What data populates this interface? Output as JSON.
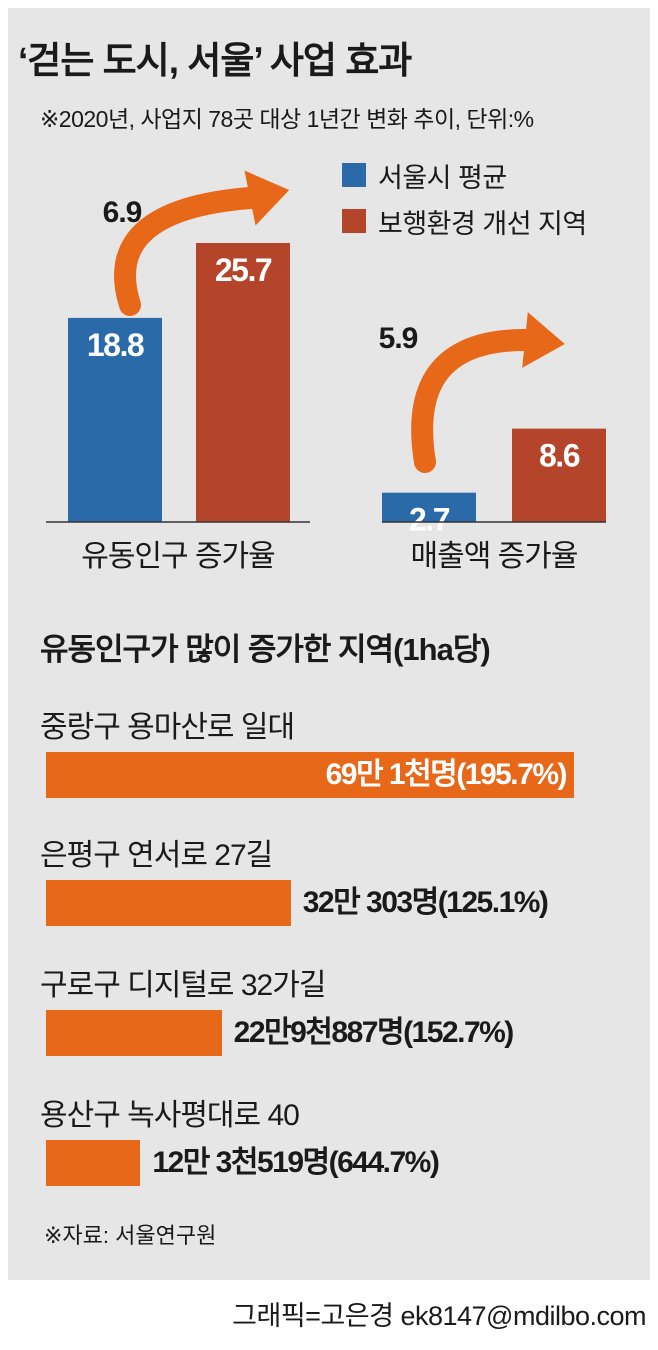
{
  "title": "‘걷는 도시, 서울’ 사업 효과",
  "subtitle": "※2020년, 사업지 78곳 대상 1년간 변화 추이, 단위:%",
  "legend": {
    "items": [
      {
        "label": "서울시 평균",
        "color": "#2a6aa8"
      },
      {
        "label": "보행환경 개선 지역",
        "color": "#b4442a"
      }
    ]
  },
  "chart_data": [
    {
      "type": "bar",
      "categories": [
        "유동인구 증가율",
        "매출액 증가율"
      ],
      "series": [
        {
          "name": "서울시 평균",
          "values": [
            18.8,
            2.7
          ],
          "color": "#2a6aa8"
        },
        {
          "name": "보행환경 개선 지역",
          "values": [
            25.7,
            8.6
          ],
          "color": "#b4442a"
        }
      ],
      "annotations": [
        {
          "category": "유동인구 증가율",
          "text": "6.9"
        },
        {
          "category": "매출액 증가율",
          "text": "5.9"
        }
      ],
      "unit": "%"
    },
    {
      "type": "bar",
      "orientation": "horizontal",
      "title": "유동인구가 많이 증가한 지역(1ha당)",
      "categories": [
        "중랑구 용마산로 일대",
        "은평구 연서로 27길",
        "구로구 디지털로 32가길",
        "용산구 녹사평대로 40"
      ],
      "values": [
        691000,
        320303,
        229887,
        123519
      ],
      "labels": [
        "69만 1천명(195.7%)",
        "32만 303명(125.1%)",
        "22만9천887명(152.7%)",
        "12만 3천519명(644.7%)"
      ],
      "color": "#e8681a"
    }
  ],
  "source": "※자료: 서울연구원",
  "credit": "그래픽=고은경 ek8147@mdilbo.com"
}
